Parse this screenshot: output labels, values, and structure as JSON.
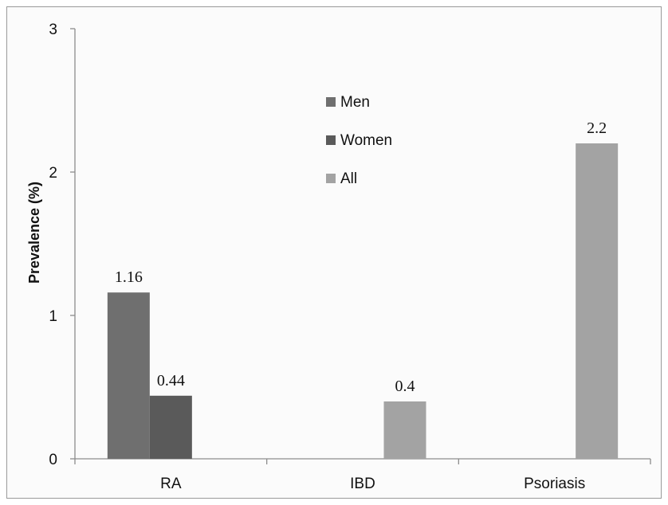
{
  "chart_data": {
    "type": "bar",
    "categories": [
      "RA",
      "IBD",
      "Psoriasis"
    ],
    "series": [
      {
        "name": "Men",
        "color": "#6f6f6f",
        "values": [
          1.16,
          null,
          null
        ],
        "labels": [
          "1.16",
          "",
          ""
        ]
      },
      {
        "name": "Women",
        "color": "#5a5a5a",
        "values": [
          0.44,
          null,
          null
        ],
        "labels": [
          "0.44",
          "",
          ""
        ]
      },
      {
        "name": "All",
        "color": "#a3a3a3",
        "values": [
          null,
          0.4,
          2.2
        ],
        "labels": [
          "",
          "0.4",
          "2.2"
        ]
      }
    ],
    "ylabel": "Prevalence (%)",
    "xlabel": "",
    "ylim": [
      0,
      3
    ],
    "yticks": [
      "0",
      "1",
      "2",
      "3"
    ],
    "legend_position": "top-center",
    "grid": false
  }
}
